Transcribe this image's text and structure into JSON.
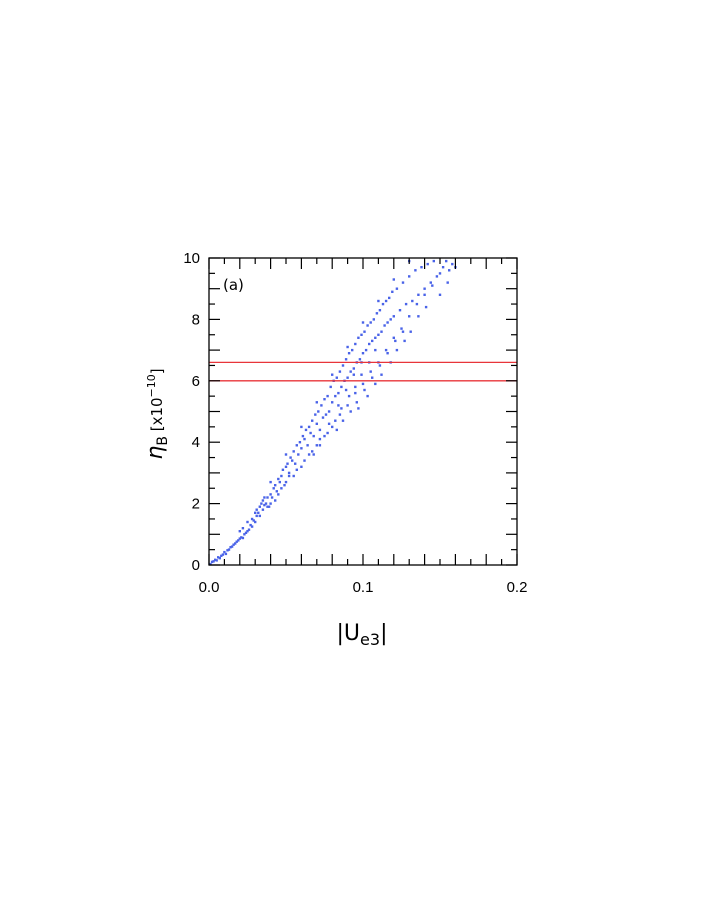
{
  "chart_data": {
    "type": "scatter",
    "panel_label": "(a)",
    "xlabel": {
      "bar_left": "|",
      "main": "U",
      "sub": "e3",
      "bar_right": "|"
    },
    "ylabel": {
      "main": "η",
      "sub": "B",
      "bracket_open": " [x10",
      "sup": "−10",
      "bracket_close": "]"
    },
    "xlim": [
      0.0,
      0.2
    ],
    "ylim": [
      0,
      10
    ],
    "x_ticks": [
      {
        "value": 0.0,
        "label": "0.0"
      },
      {
        "value": 0.1,
        "label": "0.1"
      },
      {
        "value": 0.2,
        "label": "0.2"
      }
    ],
    "y_ticks": [
      {
        "value": 0,
        "label": "0"
      },
      {
        "value": 2,
        "label": "2"
      },
      {
        "value": 4,
        "label": "4"
      },
      {
        "value": 6,
        "label": "6"
      },
      {
        "value": 8,
        "label": "8"
      },
      {
        "value": 10,
        "label": "10"
      }
    ],
    "reference_lines": [
      {
        "y": 6.0,
        "color": "#e8353a"
      },
      {
        "y": 6.6,
        "color": "#e8353a"
      }
    ],
    "point_color": "#4a63e8",
    "points": [
      [
        0.001,
        0.03
      ],
      [
        0.002,
        0.1
      ],
      [
        0.003,
        0.12
      ],
      [
        0.004,
        0.17
      ],
      [
        0.005,
        0.15
      ],
      [
        0.006,
        0.25
      ],
      [
        0.007,
        0.22
      ],
      [
        0.008,
        0.3
      ],
      [
        0.009,
        0.34
      ],
      [
        0.01,
        0.42
      ],
      [
        0.011,
        0.36
      ],
      [
        0.012,
        0.48
      ],
      [
        0.013,
        0.5
      ],
      [
        0.014,
        0.58
      ],
      [
        0.015,
        0.6
      ],
      [
        0.016,
        0.66
      ],
      [
        0.017,
        0.7
      ],
      [
        0.018,
        0.76
      ],
      [
        0.019,
        0.8
      ],
      [
        0.02,
        0.86
      ],
      [
        0.021,
        0.9
      ],
      [
        0.022,
        0.88
      ],
      [
        0.023,
        1.0
      ],
      [
        0.024,
        1.05
      ],
      [
        0.025,
        1.1
      ],
      [
        0.026,
        1.15
      ],
      [
        0.027,
        1.3
      ],
      [
        0.028,
        1.25
      ],
      [
        0.029,
        1.45
      ],
      [
        0.03,
        1.4
      ],
      [
        0.031,
        1.6
      ],
      [
        0.032,
        1.7
      ],
      [
        0.033,
        1.9
      ],
      [
        0.034,
        2.0
      ],
      [
        0.035,
        2.1
      ],
      [
        0.036,
        1.95
      ],
      [
        0.037,
        2.0
      ],
      [
        0.038,
        2.2
      ],
      [
        0.039,
        1.9
      ],
      [
        0.04,
        2.3
      ],
      [
        0.041,
        2.2
      ],
      [
        0.042,
        2.5
      ],
      [
        0.043,
        2.6
      ],
      [
        0.044,
        2.4
      ],
      [
        0.045,
        2.8
      ],
      [
        0.046,
        2.7
      ],
      [
        0.047,
        2.9
      ],
      [
        0.048,
        3.1
      ],
      [
        0.049,
        2.6
      ],
      [
        0.05,
        3.2
      ],
      [
        0.051,
        3.3
      ],
      [
        0.052,
        3.0
      ],
      [
        0.053,
        3.5
      ],
      [
        0.054,
        3.4
      ],
      [
        0.055,
        3.7
      ],
      [
        0.056,
        3.3
      ],
      [
        0.057,
        3.9
      ],
      [
        0.058,
        3.6
      ],
      [
        0.059,
        4.0
      ],
      [
        0.06,
        3.8
      ],
      [
        0.061,
        4.2
      ],
      [
        0.062,
        4.1
      ],
      [
        0.063,
        4.4
      ],
      [
        0.064,
        3.9
      ],
      [
        0.065,
        4.5
      ],
      [
        0.066,
        4.3
      ],
      [
        0.067,
        4.7
      ],
      [
        0.068,
        4.2
      ],
      [
        0.069,
        4.9
      ],
      [
        0.07,
        4.6
      ],
      [
        0.071,
        5.0
      ],
      [
        0.072,
        4.4
      ],
      [
        0.073,
        5.2
      ],
      [
        0.074,
        4.8
      ],
      [
        0.075,
        5.4
      ],
      [
        0.076,
        4.9
      ],
      [
        0.077,
        5.5
      ],
      [
        0.078,
        5.0
      ],
      [
        0.079,
        5.8
      ],
      [
        0.08,
        5.3
      ],
      [
        0.081,
        6.0
      ],
      [
        0.082,
        5.5
      ],
      [
        0.083,
        6.1
      ],
      [
        0.084,
        5.6
      ],
      [
        0.085,
        6.3
      ],
      [
        0.086,
        5.8
      ],
      [
        0.087,
        6.5
      ],
      [
        0.088,
        6.0
      ],
      [
        0.089,
        6.7
      ],
      [
        0.09,
        6.1
      ],
      [
        0.091,
        6.9
      ],
      [
        0.092,
        6.3
      ],
      [
        0.093,
        7.0
      ],
      [
        0.094,
        6.4
      ],
      [
        0.095,
        7.2
      ],
      [
        0.096,
        6.6
      ],
      [
        0.097,
        7.4
      ],
      [
        0.098,
        6.7
      ],
      [
        0.099,
        7.5
      ],
      [
        0.1,
        6.9
      ],
      [
        0.101,
        7.6
      ],
      [
        0.102,
        7.0
      ],
      [
        0.103,
        7.8
      ],
      [
        0.104,
        7.2
      ],
      [
        0.105,
        7.9
      ],
      [
        0.106,
        7.3
      ],
      [
        0.107,
        8.0
      ],
      [
        0.108,
        7.4
      ],
      [
        0.109,
        8.2
      ],
      [
        0.11,
        7.5
      ],
      [
        0.111,
        8.3
      ],
      [
        0.112,
        7.6
      ],
      [
        0.113,
        8.5
      ],
      [
        0.114,
        7.8
      ],
      [
        0.115,
        8.6
      ],
      [
        0.116,
        7.9
      ],
      [
        0.117,
        8.7
      ],
      [
        0.118,
        8.0
      ],
      [
        0.119,
        8.9
      ],
      [
        0.12,
        8.1
      ],
      [
        0.122,
        9.0
      ],
      [
        0.124,
        8.3
      ],
      [
        0.126,
        9.2
      ],
      [
        0.128,
        8.5
      ],
      [
        0.13,
        9.4
      ],
      [
        0.132,
        8.6
      ],
      [
        0.134,
        9.6
      ],
      [
        0.136,
        8.8
      ],
      [
        0.138,
        9.7
      ],
      [
        0.14,
        9.0
      ],
      [
        0.142,
        9.8
      ],
      [
        0.144,
        9.2
      ],
      [
        0.146,
        9.9
      ],
      [
        0.148,
        9.4
      ],
      [
        0.15,
        9.5
      ],
      [
        0.152,
        9.7
      ],
      [
        0.154,
        9.9
      ],
      [
        0.156,
        9.6
      ],
      [
        0.158,
        9.8
      ],
      [
        0.16,
        9.7
      ],
      [
        0.03,
        1.7
      ],
      [
        0.035,
        1.8
      ],
      [
        0.04,
        2.0
      ],
      [
        0.045,
        2.3
      ],
      [
        0.05,
        2.7
      ],
      [
        0.055,
        2.9
      ],
      [
        0.06,
        3.2
      ],
      [
        0.065,
        3.6
      ],
      [
        0.07,
        3.9
      ],
      [
        0.075,
        4.2
      ],
      [
        0.08,
        4.5
      ],
      [
        0.085,
        4.9
      ],
      [
        0.09,
        5.2
      ],
      [
        0.095,
        5.6
      ],
      [
        0.1,
        5.9
      ],
      [
        0.105,
        6.3
      ],
      [
        0.11,
        6.6
      ],
      [
        0.115,
        7.0
      ],
      [
        0.12,
        7.4
      ],
      [
        0.125,
        7.7
      ],
      [
        0.13,
        8.1
      ],
      [
        0.135,
        8.5
      ],
      [
        0.14,
        8.8
      ],
      [
        0.145,
        9.1
      ],
      [
        0.15,
        8.8
      ],
      [
        0.155,
        9.2
      ],
      [
        0.04,
        2.7
      ],
      [
        0.05,
        3.6
      ],
      [
        0.06,
        4.5
      ],
      [
        0.07,
        5.3
      ],
      [
        0.08,
        6.2
      ],
      [
        0.09,
        7.1
      ],
      [
        0.1,
        7.9
      ],
      [
        0.11,
        8.6
      ],
      [
        0.12,
        9.3
      ],
      [
        0.13,
        9.9
      ],
      [
        0.097,
        5.1
      ],
      [
        0.103,
        5.5
      ],
      [
        0.108,
        5.9
      ],
      [
        0.112,
        6.2
      ],
      [
        0.118,
        6.6
      ],
      [
        0.122,
        7.0
      ],
      [
        0.127,
        7.3
      ],
      [
        0.131,
        7.6
      ],
      [
        0.136,
        8.1
      ],
      [
        0.141,
        8.4
      ],
      [
        0.083,
        4.4
      ],
      [
        0.087,
        4.7
      ],
      [
        0.092,
        5.0
      ],
      [
        0.096,
        5.3
      ],
      [
        0.101,
        5.7
      ],
      [
        0.106,
        6.1
      ],
      [
        0.111,
        6.5
      ],
      [
        0.116,
        6.9
      ],
      [
        0.121,
        7.3
      ],
      [
        0.126,
        7.6
      ],
      [
        0.068,
        3.6
      ],
      [
        0.072,
        3.9
      ],
      [
        0.077,
        4.3
      ],
      [
        0.082,
        4.7
      ],
      [
        0.086,
        5.1
      ],
      [
        0.091,
        5.5
      ],
      [
        0.095,
        5.8
      ],
      [
        0.099,
        6.2
      ],
      [
        0.104,
        6.6
      ],
      [
        0.108,
        7.0
      ],
      [
        0.02,
        1.1
      ],
      [
        0.022,
        1.2
      ],
      [
        0.025,
        1.4
      ],
      [
        0.028,
        1.5
      ],
      [
        0.031,
        1.8
      ],
      [
        0.033,
        1.6
      ],
      [
        0.036,
        2.2
      ],
      [
        0.038,
        1.9
      ],
      [
        0.043,
        2.1
      ],
      [
        0.047,
        2.5
      ],
      [
        0.052,
        2.9
      ],
      [
        0.057,
        3.1
      ],
      [
        0.062,
        3.4
      ],
      [
        0.067,
        3.7
      ],
      [
        0.072,
        4.1
      ],
      [
        0.078,
        4.6
      ],
      [
        0.084,
        5.2
      ],
      [
        0.089,
        5.7
      ],
      [
        0.094,
        6.2
      ],
      [
        0.099,
        6.6
      ]
    ]
  }
}
